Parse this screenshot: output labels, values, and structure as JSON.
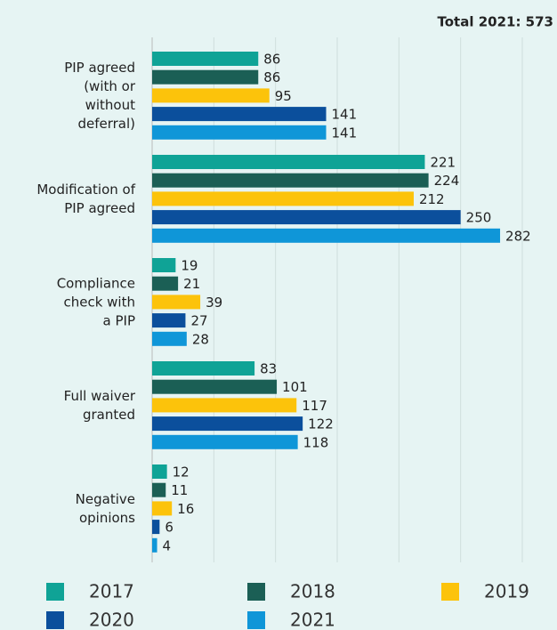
{
  "chart_data": {
    "type": "bar",
    "orientation": "horizontal",
    "title": "Total 2021: 573",
    "categories": [
      "PIP agreed\n(with or\nwithout\ndeferral)",
      "Modification of\nPIP agreed",
      "Compliance\ncheck with\na PIP",
      "Full waiver\ngranted",
      "Negative\nopinions"
    ],
    "series": [
      {
        "name": "2017",
        "color": "#0fa396",
        "values": [
          86,
          221,
          19,
          83,
          12
        ]
      },
      {
        "name": "2018",
        "color": "#1b5f55",
        "values": [
          86,
          224,
          21,
          101,
          11
        ]
      },
      {
        "name": "2019",
        "color": "#fcc30b",
        "values": [
          95,
          212,
          39,
          117,
          16
        ]
      },
      {
        "name": "2020",
        "color": "#0b4f9c",
        "values": [
          141,
          250,
          27,
          122,
          6
        ]
      },
      {
        "name": "2021",
        "color": "#0f96d8",
        "values": [
          141,
          282,
          28,
          118,
          4
        ]
      }
    ],
    "xlim": [
      0,
      300
    ],
    "xticks": [
      0,
      50,
      100,
      150,
      200,
      250,
      300
    ],
    "grid": true,
    "legend": "bottom"
  }
}
